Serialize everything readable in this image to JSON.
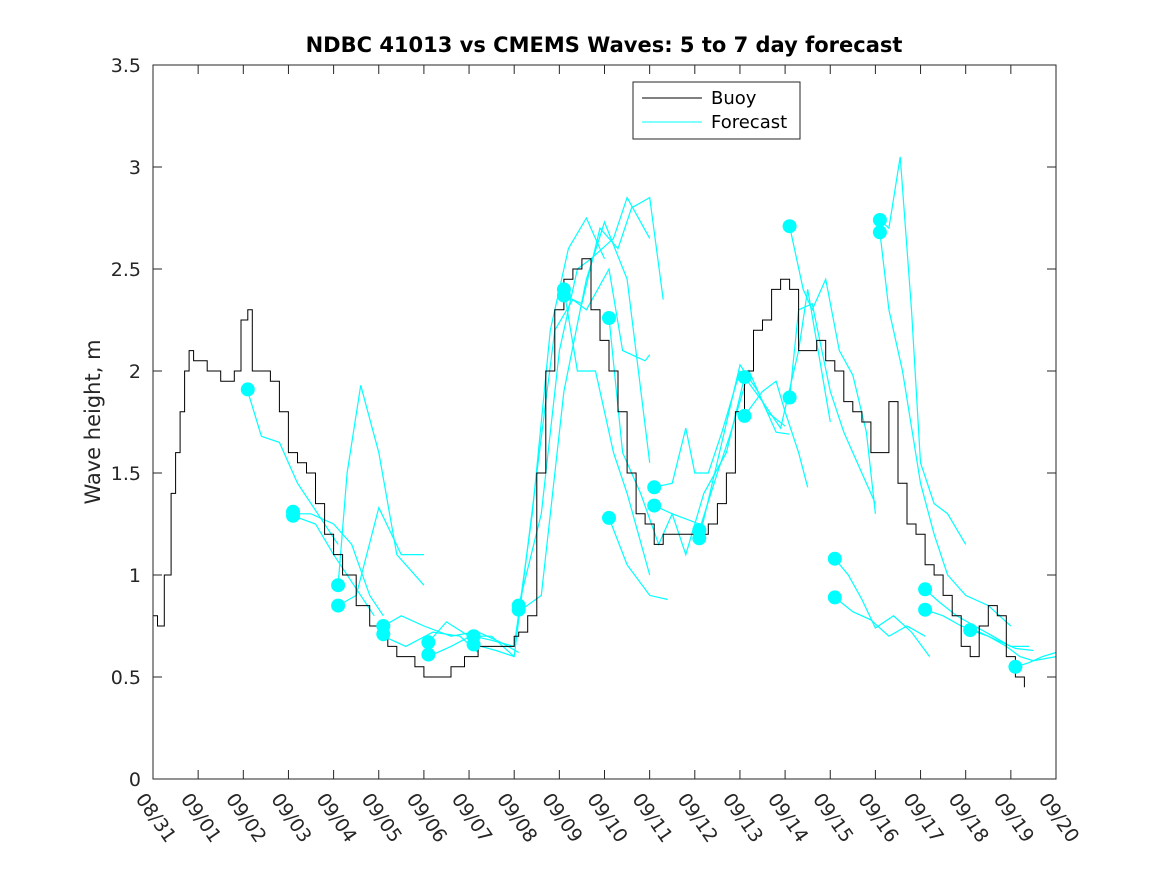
{
  "chart_data": {
    "type": "line",
    "title": "NDBC 41013 vs CMEMS Waves: 5 to 7 day forecast",
    "xlabel": "",
    "ylabel": "Wave height, m",
    "xlim": [
      0,
      20
    ],
    "ylim": [
      0,
      3.5
    ],
    "x_ticks": [
      0,
      1,
      2,
      3,
      4,
      5,
      6,
      7,
      8,
      9,
      10,
      11,
      12,
      13,
      14,
      15,
      16,
      17,
      18,
      19,
      20
    ],
    "x_tick_labels": [
      "08/31",
      "09/01",
      "09/02",
      "09/03",
      "09/04",
      "09/05",
      "09/06",
      "09/07",
      "09/08",
      "09/09",
      "09/10",
      "09/11",
      "09/12",
      "09/13",
      "09/14",
      "09/15",
      "09/16",
      "09/17",
      "09/18",
      "09/19",
      "09/20"
    ],
    "y_ticks": [
      0,
      0.5,
      1,
      1.5,
      2,
      2.5,
      3,
      3.5
    ],
    "y_tick_labels": [
      "0",
      "0.5",
      "1",
      "1.5",
      "2",
      "2.5",
      "3",
      "3.5"
    ],
    "grid": false,
    "legend": {
      "location": "top-right",
      "entries": [
        "Buoy",
        "Forecast"
      ]
    },
    "colors": {
      "buoy": "#000000",
      "forecast": "#00FFFF",
      "axes": "#262626"
    },
    "buoy": {
      "name": "Buoy",
      "x": [
        0,
        0.1,
        0.25,
        0.4,
        0.5,
        0.6,
        0.7,
        0.8,
        0.9,
        1.0,
        1.2,
        1.5,
        1.8,
        1.95,
        2.1,
        2.2,
        2.4,
        2.6,
        2.8,
        3.0,
        3.2,
        3.4,
        3.6,
        3.8,
        4.0,
        4.2,
        4.5,
        4.8,
        5.0,
        5.2,
        5.4,
        5.6,
        5.8,
        6.0,
        6.3,
        6.6,
        6.9,
        7.2,
        7.5,
        7.8,
        8.0,
        8.1,
        8.3,
        8.5,
        8.7,
        8.9,
        9.1,
        9.3,
        9.5,
        9.7,
        9.9,
        10.1,
        10.3,
        10.5,
        10.7,
        10.9,
        11.1,
        11.3,
        11.5,
        11.7,
        11.9,
        12.1,
        12.3,
        12.5,
        12.7,
        12.9,
        13.1,
        13.3,
        13.5,
        13.7,
        13.9,
        14.1,
        14.3,
        14.5,
        14.7,
        14.9,
        15.1,
        15.3,
        15.5,
        15.7,
        15.9,
        16.1,
        16.3,
        16.5,
        16.7,
        16.9,
        17.1,
        17.3,
        17.5,
        17.7,
        17.9,
        18.1,
        18.3,
        18.5,
        18.7,
        18.9,
        19.1,
        19.3
      ],
      "y": [
        0.8,
        0.75,
        1.0,
        1.4,
        1.6,
        1.8,
        2.0,
        2.1,
        2.05,
        2.05,
        2.0,
        1.95,
        2.0,
        2.25,
        2.3,
        2.0,
        2.0,
        1.95,
        1.8,
        1.6,
        1.55,
        1.5,
        1.35,
        1.2,
        1.1,
        1.0,
        0.85,
        0.75,
        0.7,
        0.65,
        0.6,
        0.6,
        0.55,
        0.5,
        0.5,
        0.55,
        0.6,
        0.65,
        0.65,
        0.65,
        0.7,
        0.72,
        0.8,
        1.5,
        2.0,
        2.3,
        2.45,
        2.5,
        2.55,
        2.3,
        2.15,
        2.0,
        1.8,
        1.5,
        1.3,
        1.25,
        1.15,
        1.2,
        1.2,
        1.2,
        1.2,
        1.2,
        1.25,
        1.35,
        1.5,
        1.8,
        2.0,
        2.2,
        2.25,
        2.4,
        2.45,
        2.4,
        2.1,
        2.1,
        2.15,
        2.05,
        2.0,
        1.85,
        1.8,
        1.75,
        1.6,
        1.6,
        1.85,
        1.45,
        1.25,
        1.2,
        1.05,
        1.0,
        0.9,
        0.8,
        0.65,
        0.6,
        0.75,
        0.85,
        0.8,
        0.6,
        0.5,
        0.45
      ]
    },
    "forecast_lines": [
      {
        "x": [
          2.1,
          2.4,
          2.8,
          3.2,
          3.5,
          4.1
        ],
        "y": [
          1.9,
          1.68,
          1.65,
          1.45,
          1.35,
          1.15
        ]
      },
      {
        "x": [
          3.1,
          3.5,
          4.0,
          4.4,
          4.8,
          5.1
        ],
        "y": [
          1.3,
          1.3,
          1.25,
          1.15,
          0.9,
          0.8
        ]
      },
      {
        "x": [
          3.1,
          3.6,
          4.0,
          4.6,
          4.9
        ],
        "y": [
          1.29,
          1.25,
          1.1,
          0.9,
          0.8
        ]
      },
      {
        "x": [
          4.1,
          4.3,
          4.6,
          5.0,
          5.4,
          6.0
        ],
        "y": [
          0.95,
          1.5,
          1.93,
          1.6,
          1.1,
          0.95
        ]
      },
      {
        "x": [
          4.1,
          4.5,
          5.0,
          5.5,
          6.0
        ],
        "y": [
          0.85,
          0.9,
          1.33,
          1.1,
          1.1
        ]
      },
      {
        "x": [
          5.1,
          5.5,
          6.0,
          6.6,
          7.1
        ],
        "y": [
          0.75,
          0.8,
          0.75,
          0.7,
          0.72
        ]
      },
      {
        "x": [
          5.1,
          5.6,
          6.2,
          6.8,
          7.2
        ],
        "y": [
          0.7,
          0.65,
          0.72,
          0.7,
          0.62
        ]
      },
      {
        "x": [
          6.1,
          6.5,
          7.0,
          7.5,
          8.0
        ],
        "y": [
          0.67,
          0.77,
          0.7,
          0.7,
          0.6
        ]
      },
      {
        "x": [
          6.1,
          6.6,
          7.2,
          7.7,
          8.1
        ],
        "y": [
          0.6,
          0.65,
          0.72,
          0.67,
          0.62
        ]
      },
      {
        "x": [
          7.1,
          7.5,
          8.0,
          8.4,
          8.8,
          9.2,
          9.6,
          10.0
        ],
        "y": [
          0.7,
          0.68,
          0.65,
          1.3,
          2.2,
          2.6,
          2.75,
          2.55
        ]
      },
      {
        "x": [
          7.1,
          7.6,
          8.0,
          8.5,
          8.9,
          9.3,
          9.6,
          10.1,
          10.4,
          10.9,
          11.0
        ],
        "y": [
          0.66,
          0.63,
          0.6,
          1.5,
          2.2,
          2.35,
          2.3,
          2.5,
          2.1,
          2.05,
          2.08
        ]
      },
      {
        "x": [
          8.1,
          8.6,
          9.0,
          9.4,
          9.7,
          10.2,
          10.5,
          11.0
        ],
        "y": [
          0.85,
          1.3,
          2.1,
          2.5,
          2.55,
          2.65,
          2.85,
          2.65
        ]
      },
      {
        "x": [
          8.1,
          8.6,
          9.1,
          9.6,
          10.0,
          10.5,
          11.0
        ],
        "y": [
          0.82,
          0.9,
          1.9,
          2.45,
          2.73,
          2.45,
          1.55
        ]
      },
      {
        "x": [
          9.1,
          9.5,
          9.9,
          10.3,
          10.6,
          11.0,
          11.3
        ],
        "y": [
          2.37,
          2.33,
          2.7,
          2.6,
          2.8,
          2.85,
          2.35
        ]
      },
      {
        "x": [
          9.1,
          9.4,
          9.8,
          10.2,
          10.5,
          11.0
        ],
        "y": [
          2.4,
          2.0,
          2.0,
          1.6,
          1.4,
          1.0
        ]
      },
      {
        "x": [
          10.1,
          10.5,
          11.0,
          11.4
        ],
        "y": [
          1.28,
          1.05,
          0.9,
          0.88
        ]
      },
      {
        "x": [
          10.1,
          10.4,
          10.8,
          11.2,
          11.5,
          12.1
        ],
        "y": [
          2.26,
          1.6,
          1.4,
          1.15,
          1.3,
          1.25
        ]
      },
      {
        "x": [
          11.1,
          11.5,
          11.8,
          12.0,
          12.3,
          12.6,
          13.0
        ],
        "y": [
          1.43,
          1.45,
          1.72,
          1.5,
          1.5,
          1.7,
          2.0
        ]
      },
      {
        "x": [
          11.1,
          11.5,
          11.8,
          12.2,
          12.7,
          13.1
        ],
        "y": [
          1.34,
          1.3,
          1.1,
          1.4,
          1.6,
          1.97
        ]
      },
      {
        "x": [
          12.1,
          12.5,
          12.8,
          13.2,
          13.6,
          14.0
        ],
        "y": [
          1.22,
          1.5,
          1.7,
          2.0,
          1.8,
          1.73
        ]
      },
      {
        "x": [
          12.1,
          12.6,
          13.0,
          13.4,
          13.8,
          14.1
        ],
        "y": [
          1.18,
          1.65,
          2.03,
          1.9,
          1.7,
          1.69
        ]
      },
      {
        "x": [
          13.1,
          13.5,
          13.9,
          14.3,
          14.5,
          15.0
        ],
        "y": [
          1.97,
          1.85,
          1.72,
          2.1,
          2.4,
          1.75
        ]
      },
      {
        "x": [
          13.1,
          13.5,
          13.8,
          14.0,
          14.3,
          14.5
        ],
        "y": [
          1.78,
          1.9,
          1.95,
          1.8,
          1.6,
          1.43
        ]
      },
      {
        "x": [
          14.1,
          14.4,
          14.6,
          14.9,
          15.2,
          15.5,
          15.8,
          16.0
        ],
        "y": [
          2.71,
          2.4,
          2.3,
          2.45,
          2.1,
          1.98,
          1.7,
          1.3
        ]
      },
      {
        "x": [
          14.1,
          14.3,
          14.6,
          15.0,
          15.3,
          15.6,
          16.0
        ],
        "y": [
          1.87,
          2.3,
          2.33,
          1.9,
          1.7,
          1.55,
          1.35
        ]
      },
      {
        "x": [
          15.1,
          15.4,
          15.7,
          16.0,
          16.4,
          16.8,
          17.2
        ],
        "y": [
          1.08,
          1.0,
          0.88,
          0.74,
          0.8,
          0.72,
          0.6
        ]
      },
      {
        "x": [
          15.1,
          15.5,
          15.9,
          16.3,
          16.7,
          17.1
        ],
        "y": [
          0.89,
          0.82,
          0.78,
          0.7,
          0.75,
          0.7
        ]
      },
      {
        "x": [
          16.1,
          16.3,
          16.55,
          16.8,
          17.0,
          17.3,
          17.6,
          18.0
        ],
        "y": [
          2.74,
          2.7,
          3.05,
          2.3,
          1.55,
          1.35,
          1.3,
          1.15
        ]
      },
      {
        "x": [
          16.1,
          16.3,
          16.6,
          17.0,
          17.3,
          17.6,
          18.0,
          18.5,
          19.0
        ],
        "y": [
          2.68,
          2.3,
          2.0,
          1.45,
          1.2,
          1.0,
          0.9,
          0.85,
          0.75
        ]
      },
      {
        "x": [
          17.1,
          17.4,
          17.8,
          18.2,
          18.6,
          19.0,
          19.4
        ],
        "y": [
          0.93,
          0.87,
          0.8,
          0.75,
          0.7,
          0.65,
          0.65
        ]
      },
      {
        "x": [
          17.1,
          17.5,
          17.9,
          18.3,
          18.7,
          19.1,
          19.5
        ],
        "y": [
          0.83,
          0.8,
          0.75,
          0.72,
          0.68,
          0.64,
          0.63
        ]
      },
      {
        "x": [
          18.1,
          18.5,
          18.9,
          19.2,
          19.5,
          20.0
        ],
        "y": [
          0.73,
          0.7,
          0.65,
          0.6,
          0.58,
          0.6
        ]
      },
      {
        "x": [
          19.1,
          19.4,
          19.7,
          20.0
        ],
        "y": [
          0.55,
          0.57,
          0.6,
          0.62
        ]
      }
    ],
    "forecast_markers": {
      "x": [
        2.1,
        3.1,
        3.1,
        4.1,
        4.1,
        5.1,
        5.1,
        6.1,
        6.1,
        7.1,
        7.1,
        8.1,
        8.1,
        9.1,
        9.1,
        10.1,
        10.1,
        11.1,
        11.1,
        12.1,
        12.1,
        13.1,
        13.1,
        14.1,
        14.1,
        15.1,
        15.1,
        16.1,
        16.1,
        17.1,
        17.1,
        18.1,
        19.1
      ],
      "y": [
        1.91,
        1.31,
        1.29,
        0.95,
        0.85,
        0.75,
        0.71,
        0.67,
        0.61,
        0.7,
        0.66,
        0.85,
        0.83,
        2.4,
        2.37,
        2.26,
        1.28,
        1.43,
        1.34,
        1.22,
        1.18,
        1.97,
        1.78,
        2.71,
        1.87,
        1.08,
        0.89,
        2.74,
        2.68,
        0.93,
        0.83,
        0.73,
        0.55
      ]
    }
  }
}
